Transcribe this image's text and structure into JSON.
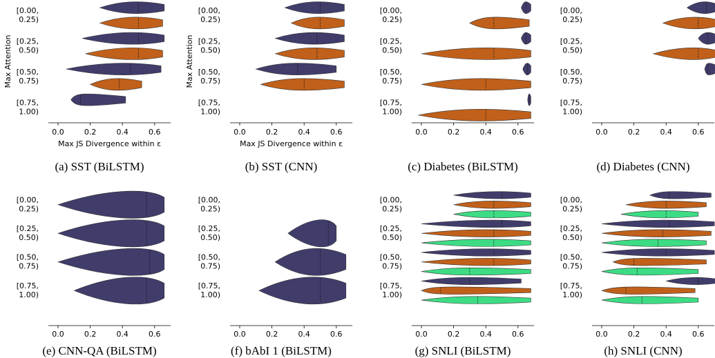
{
  "chart_data": [
    {
      "type": "violin",
      "caption": "(a) SST (BiLSTM)",
      "ylabel": "Max Attention",
      "xlabel": "Max JS Divergence within ε",
      "categories": [
        [
          "[0.00,",
          "0.25)"
        ],
        [
          "[0.25,",
          "0.50)"
        ],
        [
          "[0.50,",
          "0.75)"
        ],
        [
          "[0.75,",
          "1.00)"
        ]
      ],
      "xlim": [
        -0.06,
        0.7
      ],
      "xticks": [
        {
          "value": 0,
          "label": "0.0"
        },
        0.2,
        0.4,
        0.6
      ],
      "series": [
        {
          "color": "#403d6b",
          "values": [
            [
              0.26,
              0.5,
              0.66
            ],
            [
              0.15,
              0.5,
              0.66
            ],
            [
              0.05,
              0.45,
              0.64
            ],
            [
              0.08,
              0.14,
              0.42
            ]
          ]
        },
        {
          "color": "#c0601a",
          "values": [
            [
              0.26,
              0.5,
              0.65
            ],
            [
              0.17,
              0.5,
              0.65
            ],
            [
              0.2,
              0.38,
              0.52
            ],
            null
          ]
        }
      ]
    },
    {
      "type": "violin",
      "caption": "(b) SST (CNN)",
      "ylabel": "Max Attention",
      "xlabel": "Max JS Divergence within ε",
      "categories": [
        [
          "[0.00,",
          "0.25)"
        ],
        [
          "[0.25,",
          "0.50)"
        ],
        [
          "[0.50,",
          "0.75)"
        ],
        [
          "[0.75,",
          "1.00)"
        ]
      ],
      "xlim": [
        -0.06,
        0.7
      ],
      "xticks": [
        {
          "value": 0,
          "label": "0.0"
        },
        0.2,
        0.4,
        0.6
      ],
      "series": [
        {
          "color": "#403d6b",
          "values": [
            [
              0.28,
              0.5,
              0.65
            ],
            [
              0.22,
              0.48,
              0.65
            ],
            [
              0.1,
              0.36,
              0.6
            ],
            null
          ]
        },
        {
          "color": "#c0601a",
          "values": [
            [
              0.32,
              0.5,
              0.65
            ],
            [
              0.22,
              0.48,
              0.65
            ],
            [
              0.13,
              0.4,
              0.65
            ],
            null
          ]
        }
      ]
    },
    {
      "type": "violin",
      "caption": "(c) Diabetes (BiLSTM)",
      "categories": [
        [
          "[0.00,",
          "0.25)"
        ],
        [
          "[0.25,",
          "0.50)"
        ],
        [
          "[0.50,",
          "0.75)"
        ],
        [
          "[0.75,",
          "1.00)"
        ]
      ],
      "xlim": [
        -0.06,
        0.7
      ],
      "xticks": [
        {
          "value": 0,
          "label": "0.0"
        },
        0.2,
        0.4,
        0.6
      ],
      "series": [
        {
          "color": "#403d6b",
          "values": [
            [
              0.62,
              0.65,
              0.68
            ],
            [
              0.62,
              0.65,
              0.68
            ],
            [
              0.63,
              0.66,
              0.68
            ],
            [
              0.66,
              0.67,
              0.68
            ]
          ]
        },
        {
          "color": "#c0601a",
          "values": [
            [
              0.3,
              0.45,
              0.67
            ],
            [
              0.0,
              0.45,
              0.68
            ],
            [
              0.0,
              0.4,
              0.68
            ],
            [
              -0.02,
              0.4,
              0.68
            ]
          ]
        }
      ]
    },
    {
      "type": "violin",
      "caption": "(d) Diabetes (CNN)",
      "categories": [
        [
          "[0.00,",
          "0.25)"
        ],
        [
          "[0.25,",
          "0.50)"
        ],
        [
          "[0.50,",
          "0.75)"
        ],
        [
          "[0.75,",
          "1.00)"
        ]
      ],
      "xlim": [
        -0.06,
        0.7
      ],
      "xticks": [
        {
          "value": 0,
          "label": "0.0"
        },
        0.2,
        0.4,
        0.6
      ],
      "series": [
        {
          "color": "#403d6b",
          "values": [
            [
              0.53,
              0.65,
              0.72
            ],
            [
              0.6,
              0.66,
              0.72
            ],
            [
              0.64,
              0.66,
              0.72
            ],
            null
          ]
        },
        {
          "color": "#c0601a",
          "values": [
            [
              0.38,
              0.6,
              0.72
            ],
            [
              0.32,
              0.6,
              0.72
            ],
            null,
            null
          ]
        }
      ]
    },
    {
      "type": "violin",
      "caption": "(e) CNN-QA (BiLSTM)",
      "categories": [
        [
          "[0.00,",
          "0.25)"
        ],
        [
          "[0.25,",
          "0.50)"
        ],
        [
          "[0.50,",
          "0.75)"
        ],
        [
          "[0.75,",
          "1.00)"
        ]
      ],
      "xlim": [
        -0.06,
        0.7
      ],
      "xticks": [
        {
          "value": 0,
          "label": "0.0"
        },
        0.2,
        0.4,
        0.6
      ],
      "series": [
        {
          "color": "#403d6b",
          "values": [
            [
              0.0,
              0.55,
              0.66
            ],
            [
              0.0,
              0.55,
              0.66
            ],
            [
              0.0,
              0.57,
              0.66
            ],
            [
              0.1,
              0.55,
              0.66
            ]
          ]
        }
      ]
    },
    {
      "type": "violin",
      "caption": "(f) bAbI 1 (BiLSTM)",
      "categories": [
        [
          "[0.00,",
          "0.25)"
        ],
        [
          "[0.25,",
          "0.50)"
        ],
        [
          "[0.50,",
          "0.75)"
        ],
        [
          "[0.75,",
          "1.00)"
        ]
      ],
      "xlim": [
        -0.06,
        0.7
      ],
      "xticks": [
        {
          "value": 0,
          "label": "0.0"
        },
        0.2,
        0.4,
        0.6
      ],
      "series": [
        {
          "color": "#403d6b",
          "values": [
            null,
            [
              0.3,
              0.55,
              0.6
            ],
            [
              0.22,
              0.5,
              0.66
            ],
            [
              0.12,
              0.5,
              0.66
            ]
          ]
        }
      ]
    },
    {
      "type": "violin",
      "caption": "(g) SNLI (BiLSTM)",
      "categories": [
        [
          "[0.00,",
          "0.25)"
        ],
        [
          "[0.25,",
          "0.50)"
        ],
        [
          "[0.50,",
          "0.75)"
        ],
        [
          "[0.75,",
          "1.00)"
        ]
      ],
      "xlim": [
        -0.06,
        0.7
      ],
      "xticks": [
        {
          "value": 0,
          "label": "0.0"
        },
        0.2,
        0.4,
        0.6
      ],
      "series": [
        {
          "color": "#403d6b",
          "values": [
            [
              0.2,
              0.5,
              0.68
            ],
            [
              0.0,
              0.5,
              0.68
            ],
            [
              0.0,
              0.45,
              0.68
            ],
            [
              0.0,
              0.3,
              0.62
            ]
          ]
        },
        {
          "color": "#c0601a",
          "values": [
            [
              0.2,
              0.45,
              0.68
            ],
            [
              0.0,
              0.45,
              0.68
            ],
            [
              0.0,
              0.45,
              0.68
            ],
            [
              0.0,
              0.12,
              0.68
            ]
          ]
        },
        {
          "color": "#3ddc84",
          "values": [
            [
              0.2,
              0.45,
              0.68
            ],
            [
              0.0,
              0.45,
              0.68
            ],
            [
              0.0,
              0.3,
              0.68
            ],
            [
              0.0,
              0.35,
              0.68
            ]
          ]
        }
      ]
    },
    {
      "type": "violin",
      "caption": "(h) SNLI (CNN)",
      "categories": [
        [
          "[0.00,",
          "0.25)"
        ],
        [
          "[0.25,",
          "0.50)"
        ],
        [
          "[0.50,",
          "0.75)"
        ],
        [
          "[0.75,",
          "1.00)"
        ]
      ],
      "xlim": [
        -0.06,
        0.7
      ],
      "xticks": [
        {
          "value": 0,
          "label": "0.0"
        },
        0.2,
        0.4,
        0.6
      ],
      "series": [
        {
          "color": "#403d6b",
          "values": [
            [
              0.3,
              0.42,
              0.68
            ],
            [
              0.0,
              0.42,
              0.7
            ],
            [
              0.0,
              0.4,
              0.7
            ],
            [
              0.4,
              0.6,
              0.72
            ]
          ]
        },
        {
          "color": "#c0601a",
          "values": [
            [
              0.15,
              0.4,
              0.65
            ],
            [
              0.0,
              0.38,
              0.68
            ],
            [
              0.07,
              0.2,
              0.65
            ],
            [
              0.0,
              0.15,
              0.58
            ]
          ]
        },
        {
          "color": "#3ddc84",
          "values": [
            [
              0.12,
              0.4,
              0.6
            ],
            [
              0.0,
              0.35,
              0.65
            ],
            [
              0.0,
              0.22,
              0.6
            ],
            [
              0.0,
              0.25,
              0.6
            ]
          ]
        }
      ]
    }
  ]
}
